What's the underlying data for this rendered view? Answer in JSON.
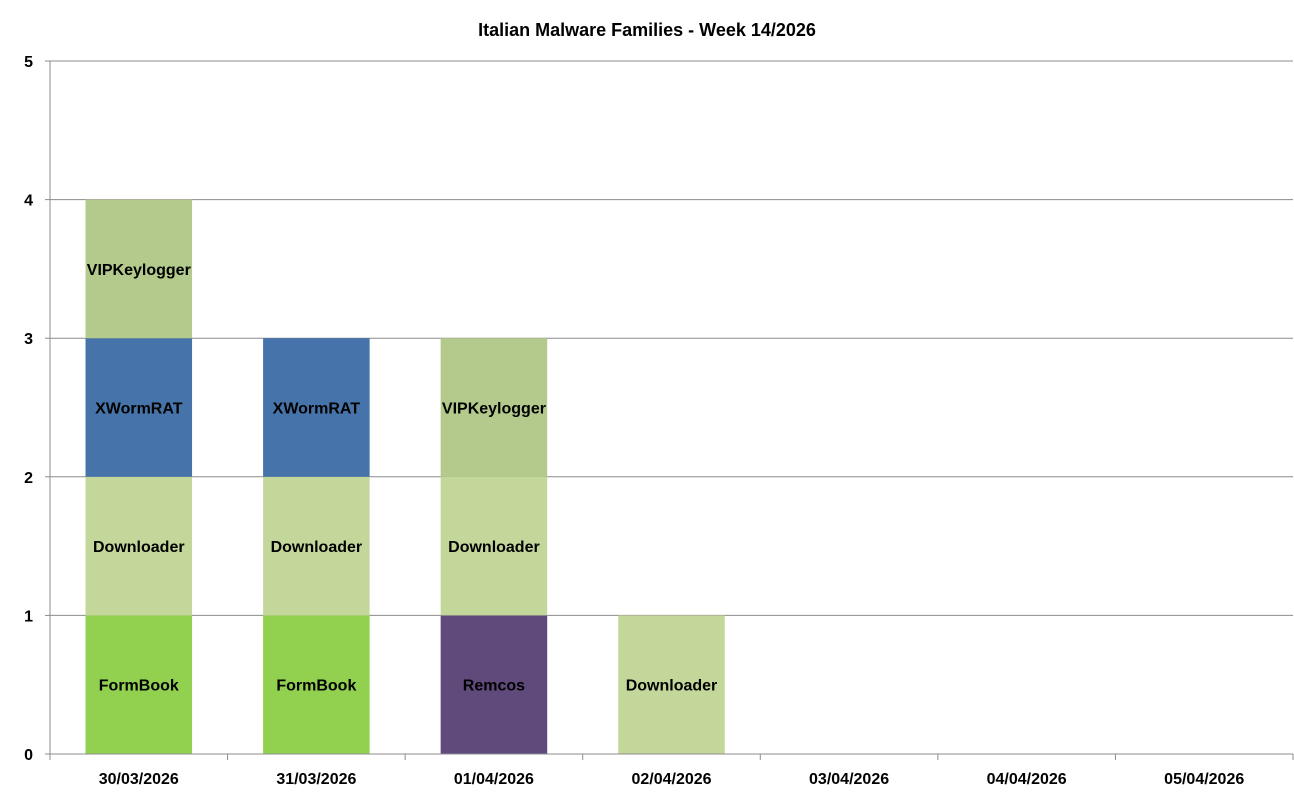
{
  "chart_data": {
    "type": "bar",
    "stacked": true,
    "title": "Italian Malware Families - Week 14/2026",
    "categories": [
      "30/03/2026",
      "31/03/2026",
      "01/04/2026",
      "02/04/2026",
      "03/04/2026",
      "04/04/2026",
      "05/04/2026"
    ],
    "ylim": [
      0,
      5
    ],
    "yticks": [
      "0",
      "1",
      "2",
      "3",
      "4",
      "5"
    ],
    "grid": true,
    "legend": "none",
    "colors": {
      "FormBook": "#92d050",
      "Downloader": "#c4d79b",
      "XWormRAT": "#4674aa",
      "VIPKeylogger": "#b3ca8c",
      "Remcos": "#604a7b"
    },
    "stacks": [
      [
        {
          "family": "FormBook",
          "value": 1
        },
        {
          "family": "Downloader",
          "value": 1
        },
        {
          "family": "XWormRAT",
          "value": 1
        },
        {
          "family": "VIPKeylogger",
          "value": 1
        }
      ],
      [
        {
          "family": "FormBook",
          "value": 1
        },
        {
          "family": "Downloader",
          "value": 1
        },
        {
          "family": "XWormRAT",
          "value": 1
        }
      ],
      [
        {
          "family": "Remcos",
          "value": 1
        },
        {
          "family": "Downloader",
          "value": 1
        },
        {
          "family": "VIPKeylogger",
          "value": 1
        }
      ],
      [
        {
          "family": "Downloader",
          "value": 1
        }
      ],
      [],
      [],
      []
    ]
  }
}
